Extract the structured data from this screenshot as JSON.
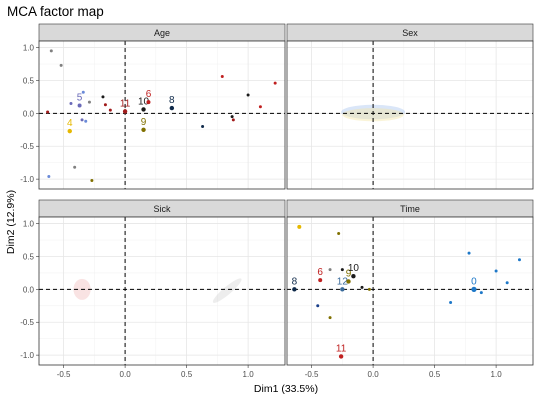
{
  "chart_data": {
    "type": "scatter",
    "title": "MCA factor map",
    "xlabel": "Dim1 (33.5%)",
    "ylabel": "Dim2 (12.9%)",
    "xlim": [
      -0.7,
      1.3
    ],
    "ylim": [
      -1.15,
      1.1
    ],
    "x_ticks": [
      "-0.5",
      "0.0",
      "0.5",
      "1.0"
    ],
    "y_ticks": [
      "-1.0",
      "-0.5",
      "0.0",
      "0.5",
      "1.0"
    ],
    "grid": true,
    "reference_lines": {
      "x": 0,
      "y": 0,
      "style": "dashed"
    },
    "panels": [
      {
        "name": "Age",
        "points": [
          {
            "x": -0.6,
            "y": 0.95,
            "color": "#808080",
            "size": 1.5
          },
          {
            "x": -0.52,
            "y": 0.73,
            "color": "#808080",
            "size": 1.5
          },
          {
            "x": -0.63,
            "y": 0.02,
            "color": "#a01a1a",
            "size": 1.5
          },
          {
            "x": -0.44,
            "y": 0.15,
            "color": "#6a6ab8",
            "size": 1.5
          },
          {
            "x": -0.45,
            "y": -0.27,
            "color": "#e6b800",
            "size": 2.2,
            "label": "4"
          },
          {
            "x": -0.37,
            "y": 0.12,
            "color": "#6a6ab8",
            "size": 2.0,
            "label": "5"
          },
          {
            "x": -0.34,
            "y": 0.32,
            "color": "#6a8ad8",
            "size": 1.5
          },
          {
            "x": -0.29,
            "y": 0.17,
            "color": "#808080",
            "size": 1.5
          },
          {
            "x": -0.35,
            "y": -0.1,
            "color": "#6a6ab8",
            "size": 1.5
          },
          {
            "x": -0.32,
            "y": -0.12,
            "color": "#6a8ad8",
            "size": 1.5
          },
          {
            "x": -0.18,
            "y": 0.25,
            "color": "#1a1a1a",
            "size": 1.5
          },
          {
            "x": -0.16,
            "y": 0.13,
            "color": "#a01a1a",
            "size": 1.5
          },
          {
            "x": -0.12,
            "y": 0.05,
            "color": "#a01a1a",
            "size": 1.5
          },
          {
            "x": 0.0,
            "y": 0.03,
            "color": "#a01a1a",
            "size": 2.2,
            "label": "11"
          },
          {
            "x": 0.15,
            "y": 0.06,
            "color": "#1a1a1a",
            "size": 2.2,
            "label": "10"
          },
          {
            "x": 0.19,
            "y": 0.17,
            "color": "#c02020",
            "size": 2.0,
            "label": "6"
          },
          {
            "x": 0.15,
            "y": -0.25,
            "color": "#807000",
            "size": 2.2,
            "label": "9"
          },
          {
            "x": 0.38,
            "y": 0.08,
            "color": "#0f2a4a",
            "size": 2.2,
            "label": "8"
          },
          {
            "x": -0.41,
            "y": -0.82,
            "color": "#808080",
            "size": 1.5
          },
          {
            "x": -0.62,
            "y": -0.96,
            "color": "#6a8ad8",
            "size": 1.5
          },
          {
            "x": -0.27,
            "y": -1.02,
            "color": "#807000",
            "size": 1.5
          },
          {
            "x": 0.63,
            "y": -0.2,
            "color": "#0f2a4a",
            "size": 1.5
          },
          {
            "x": 0.79,
            "y": 0.56,
            "color": "#c02020",
            "size": 1.5
          },
          {
            "x": 0.87,
            "y": -0.05,
            "color": "#1a1a1a",
            "size": 1.5
          },
          {
            "x": 0.88,
            "y": -0.1,
            "color": "#a01a1a",
            "size": 1.5
          },
          {
            "x": 1.0,
            "y": 0.28,
            "color": "#1a1a1a",
            "size": 1.5
          },
          {
            "x": 1.1,
            "y": 0.1,
            "color": "#c02020",
            "size": 1.5
          },
          {
            "x": 1.22,
            "y": 0.46,
            "color": "#c02020",
            "size": 1.5
          }
        ],
        "ellipses": []
      },
      {
        "name": "Sex",
        "points": [],
        "ellipses": [
          {
            "cx": 0.0,
            "cy": 0.02,
            "rx": 0.26,
            "ry": 0.11,
            "color": "#aec8ef",
            "opacity": 0.45
          },
          {
            "cx": 0.0,
            "cy": -0.02,
            "rx": 0.25,
            "ry": 0.1,
            "color": "#f4e6a8",
            "opacity": 0.45
          }
        ]
      },
      {
        "name": "Sick",
        "points": [],
        "ellipses": [
          {
            "cx": -0.35,
            "cy": 0.0,
            "rx": 0.07,
            "ry": 0.16,
            "color": "#f2c2c2",
            "opacity": 0.45,
            "rotate": 0
          },
          {
            "cx": 0.83,
            "cy": -0.02,
            "rx": 0.15,
            "ry": 0.06,
            "color": "#d8d8d8",
            "opacity": 0.45,
            "rotate": -40
          }
        ]
      },
      {
        "name": "Time",
        "points": [
          {
            "x": -0.6,
            "y": 0.95,
            "color": "#e6b800",
            "size": 2.0
          },
          {
            "x": -0.64,
            "y": 0.0,
            "color": "#0f2a4a",
            "size": 2.2,
            "label": "8"
          },
          {
            "x": -0.43,
            "y": 0.14,
            "color": "#c02020",
            "size": 2.0,
            "label": "6"
          },
          {
            "x": -0.45,
            "y": -0.25,
            "color": "#1a3f8a",
            "size": 1.5
          },
          {
            "x": -0.35,
            "y": 0.3,
            "color": "#808080",
            "size": 1.5
          },
          {
            "x": -0.28,
            "y": 0.85,
            "color": "#807000",
            "size": 1.5
          },
          {
            "x": -0.35,
            "y": -0.43,
            "color": "#807000",
            "size": 1.5
          },
          {
            "x": -0.25,
            "y": 0.3,
            "color": "#1a1a1a",
            "size": 1.5
          },
          {
            "x": -0.25,
            "y": 0.0,
            "color": "#3a6a9a",
            "size": 2.2,
            "label": "12"
          },
          {
            "x": -0.2,
            "y": 0.12,
            "color": "#807000",
            "size": 2.2,
            "label": "9"
          },
          {
            "x": -0.16,
            "y": 0.2,
            "color": "#1a1a1a",
            "size": 2.2,
            "label": "10"
          },
          {
            "x": -0.09,
            "y": 0.03,
            "color": "#1a1a1a",
            "size": 1.5
          },
          {
            "x": -0.03,
            "y": 0.0,
            "color": "#807000",
            "size": 1.5
          },
          {
            "x": -0.26,
            "y": -1.02,
            "color": "#c02020",
            "size": 2.2,
            "label": "11"
          },
          {
            "x": 0.82,
            "y": 0.0,
            "color": "#1e78c8",
            "size": 2.6,
            "label": "0"
          },
          {
            "x": 0.78,
            "y": 0.55,
            "color": "#1e78c8",
            "size": 1.5
          },
          {
            "x": 0.63,
            "y": -0.2,
            "color": "#1e78c8",
            "size": 1.5
          },
          {
            "x": 0.88,
            "y": -0.05,
            "color": "#1e78c8",
            "size": 1.5
          },
          {
            "x": 1.0,
            "y": 0.28,
            "color": "#1e78c8",
            "size": 1.5
          },
          {
            "x": 1.09,
            "y": 0.1,
            "color": "#1e78c8",
            "size": 1.5
          },
          {
            "x": 1.19,
            "y": 0.45,
            "color": "#1e78c8",
            "size": 1.5
          }
        ],
        "ellipses": []
      }
    ]
  }
}
